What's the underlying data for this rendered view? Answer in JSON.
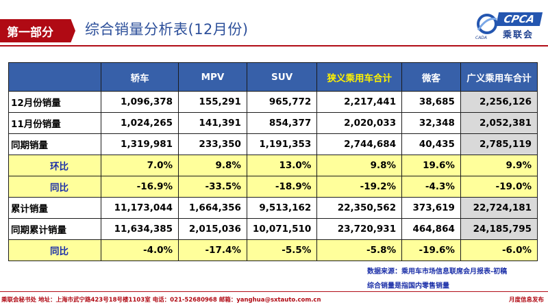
{
  "header": {
    "section": "第一部分",
    "title": "综合销量分析表(12月份)"
  },
  "logo": {
    "brand": "CPCA",
    "name": "乘联会",
    "sub": "CADA"
  },
  "table": {
    "columns": [
      "",
      "轿车",
      "MPV",
      "SUV",
      "狭义乘用车合计",
      "微客",
      "广义乘用车合计"
    ],
    "rows": [
      {
        "label": "12月份销量",
        "cells": [
          "1,096,378",
          "155,291",
          "965,772",
          "2,217,441",
          "38,685",
          "2,256,126"
        ]
      },
      {
        "label": "11月份销量",
        "cells": [
          "1,024,265",
          "141,391",
          "854,377",
          "2,020,033",
          "32,348",
          "2,052,381"
        ]
      },
      {
        "label": "同期销量",
        "cells": [
          "1,319,981",
          "233,350",
          "1,191,353",
          "2,744,684",
          "40,435",
          "2,785,119"
        ]
      },
      {
        "label": "环比",
        "cells": [
          "7.0%",
          "9.8%",
          "13.0%",
          "9.8%",
          "19.6%",
          "9.9%"
        ]
      },
      {
        "label": "同比",
        "cells": [
          "-16.9%",
          "-33.5%",
          "-18.9%",
          "-19.2%",
          "-4.3%",
          "-19.0%"
        ]
      },
      {
        "label": "累计销量",
        "cells": [
          "11,173,044",
          "1,664,356",
          "9,513,162",
          "22,350,562",
          "373,619",
          "22,724,181"
        ]
      },
      {
        "label": "同期累计销量",
        "cells": [
          "11,634,385",
          "2,015,036",
          "10,071,510",
          "23,720,931",
          "464,864",
          "24,185,795"
        ]
      },
      {
        "label": "同比",
        "cells": [
          "-4.0%",
          "-17.4%",
          "-5.5%",
          "-5.8%",
          "-19.6%",
          "-6.0%"
        ]
      }
    ]
  },
  "notes": {
    "source": "数据来源：乘用车市场信息联席会月报表-初稿",
    "scope": "综合销量是指国内零售销量"
  },
  "footer": {
    "left": "乘联会秘书处   地址：上海市武宁路423号18号楼1103室  电话：021-52680968   邮箱：yanghua@sxtauto.com.cn",
    "right": "月度信息发布"
  }
}
